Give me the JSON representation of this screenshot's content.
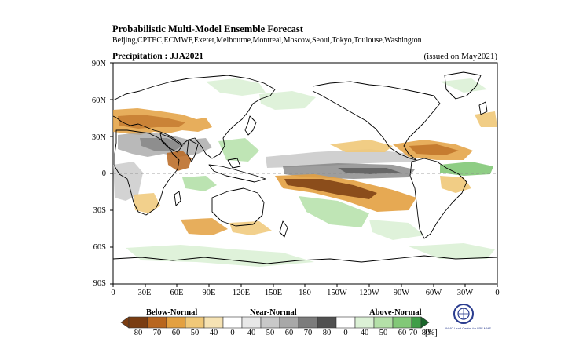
{
  "header": {
    "title": "Probabilistic Multi-Model Ensemble Forecast",
    "contributors": "Beijing,CPTEC,ECMWF,Exeter,Melbourne,Montreal,Moscow,Seoul,Tokyo,Toulouse,Washington",
    "panel_title": "Precipitation : JJA2021",
    "issued": "(issued on May2021)"
  },
  "map": {
    "lat_labels": [
      "90N",
      "60N",
      "30N",
      "0",
      "30S",
      "60S",
      "90S"
    ],
    "lon_labels": [
      "0",
      "30E",
      "60E",
      "90E",
      "120E",
      "150E",
      "180",
      "150W",
      "120W",
      "90W",
      "60W",
      "30W",
      "0"
    ],
    "land_color": "#000000",
    "ocean_color": "#ffffff"
  },
  "legend": {
    "categories": [
      "Below-Normal",
      "Near-Normal",
      "Above-Normal"
    ],
    "ticks": [
      "80",
      "70",
      "60",
      "50",
      "40",
      "0",
      "40",
      "50",
      "60",
      "70",
      "80",
      "0",
      "40",
      "50",
      "60",
      "70",
      "80"
    ],
    "unit": "[%]",
    "colors": {
      "below": [
        "#7a3d12",
        "#b8661e",
        "#e3a040",
        "#f0c878",
        "#f6e3b4"
      ],
      "near": [
        "#e8e8e8",
        "#c8c8c8",
        "#a8a8a8",
        "#7c7c7c",
        "#505050"
      ],
      "above": [
        "#dcf1d6",
        "#b4e0a8",
        "#82c877",
        "#3f9e47",
        "#19652a"
      ]
    }
  },
  "logo": {
    "text": "WMO Lead Centre for LRF MME"
  }
}
